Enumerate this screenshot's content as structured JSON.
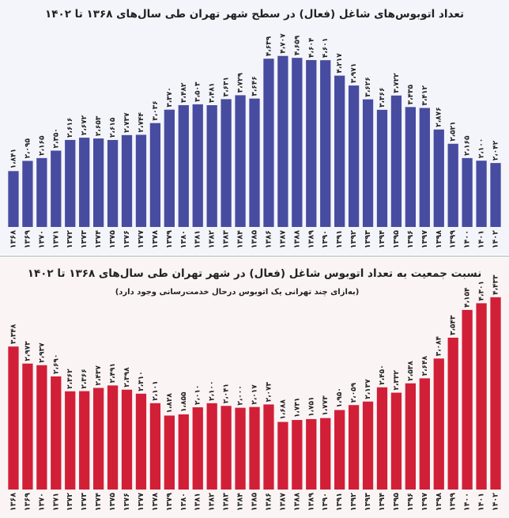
{
  "chart_data": [
    {
      "type": "bar",
      "title": "تعداد اتوبوس‌های شاغل (فعال) در سطح شهر تهران طی سال‌های ۱۳۶۸ تا ۱۴۰۲",
      "categories": [
        "۱۳۶۸",
        "۱۳۶۹",
        "۱۳۷۰",
        "۱۳۷۱",
        "۱۳۷۲",
        "۱۳۷۳",
        "۱۳۷۴",
        "۱۳۷۵",
        "۱۳۷۶",
        "۱۳۷۷",
        "۱۳۷۸",
        "۱۳۷۹",
        "۱۳۸۰",
        "۱۳۸۱",
        "۱۳۸۲",
        "۱۳۸۳",
        "۱۳۸۴",
        "۱۳۸۵",
        "۱۳۸۶",
        "۱۳۸۷",
        "۱۳۸۸",
        "۱۳۸۹",
        "۱۳۹۰",
        "۱۳۹۱",
        "۱۳۹۲",
        "۱۳۹۳",
        "۱۳۹۴",
        "۱۳۹۵",
        "۱۳۹۶",
        "۱۳۹۷",
        "۱۳۹۸",
        "۱۳۹۹",
        "۱۴۰۰",
        "۱۴۰۱",
        "۱۴۰۲"
      ],
      "values": [
        1841,
        2095,
        2165,
        2350,
        2616,
        2672,
        2653,
        2615,
        2737,
        2744,
        3036,
        3370,
        3482,
        3503,
        3481,
        3631,
        3729,
        3646,
        4639,
        4707,
        4659,
        4604,
        4601,
        4217,
        3971,
        3626,
        3366,
        3722,
        3435,
        3412,
        2876,
        2521,
        2165,
        2100,
        2042
      ],
      "value_labels": [
        "۱،۸۴۱",
        "۲،۰۹۵",
        "۲،۱۶۵",
        "۲،۳۵۰",
        "۲،۶۱۶",
        "۲،۶۷۲",
        "۲،۶۵۳",
        "۲،۶۱۵",
        "۲،۷۳۷",
        "۲،۷۴۴",
        "۳،۰۳۶",
        "۳،۳۷۰",
        "۳،۴۸۲",
        "۳،۵۰۳",
        "۳،۴۸۱",
        "۳،۶۳۱",
        "۳،۷۲۹",
        "۳،۶۴۶",
        "۴،۶۳۹",
        "۴،۷۰۷",
        "۴،۶۵۹",
        "۴،۶۰۴",
        "۴،۶۰۱",
        "۴،۲۱۷",
        "۳،۹۷۱",
        "۳،۶۲۶",
        "۳،۳۶۶",
        "۳،۷۲۲",
        "۳،۴۳۵",
        "۳،۴۱۲",
        "۲،۸۷۶",
        "۲،۵۲۱",
        "۲،۱۶۵",
        "۲،۱۰۰",
        "۲،۰۴۲"
      ],
      "color": "#474ca0",
      "ylim": [
        450,
        4800
      ]
    },
    {
      "type": "bar",
      "title": "نسبت جمعیت به تعداد اتوبوس شاغل (فعال) در شهر تهران طی سال‌های ۱۳۶۸ تا ۱۴۰۲",
      "subtitle": "(به‌ازای چند تهرانی یک اتوبوس درحال خدمت‌رسانی وجود دارد)",
      "categories": [
        "۱۳۶۸",
        "۱۳۶۹",
        "۱۳۷۰",
        "۱۳۷۱",
        "۱۳۷۲",
        "۱۳۷۳",
        "۱۳۷۴",
        "۱۳۷۵",
        "۱۳۷۶",
        "۱۳۷۷",
        "۱۳۷۸",
        "۱۳۷۹",
        "۱۳۸۰",
        "۱۳۸۱",
        "۱۳۸۲",
        "۱۳۸۳",
        "۱۳۸۴",
        "۱۳۸۵",
        "۱۳۸۶",
        "۱۳۸۷",
        "۱۳۸۸",
        "۱۳۸۹",
        "۱۳۹۰",
        "۱۳۹۱",
        "۱۳۹۲",
        "۱۳۹۳",
        "۱۳۹۴",
        "۱۳۹۵",
        "۱۳۹۶",
        "۱۳۹۷",
        "۱۳۹۸",
        "۱۳۹۹",
        "۱۴۰۰",
        "۱۴۰۱",
        "۱۴۰۲"
      ],
      "values": [
        3348,
        2973,
        2937,
        2690,
        2362,
        2366,
        2437,
        2491,
        2398,
        2310,
        2101,
        1828,
        1855,
        2010,
        2100,
        2041,
        2000,
        2017,
        2073,
        1688,
        1731,
        1751,
        1773,
        1950,
        2059,
        2137,
        2450,
        2332,
        2538,
        2648,
        3084,
        3543,
        4154,
        4301,
        4433
      ],
      "value_labels": [
        "۳،۳۴۸",
        "۲،۹۷۳",
        "۲،۹۳۷",
        "۲،۶۹۰",
        "۲،۳۶۲",
        "۲،۳۶۶",
        "۲،۴۳۷",
        "۲،۴۹۱",
        "۲،۳۹۸",
        "۲،۳۱۰",
        "۲،۱۰۱",
        "۱،۸۲۸",
        "۱،۸۵۵",
        "۲،۰۱۰",
        "۲،۱۰۰",
        "۲،۰۴۱",
        "۲،۰۰۰",
        "۲،۰۱۷",
        "۲،۰۷۳",
        "۱،۶۸۸",
        "۱،۷۳۱",
        "۱،۷۵۱",
        "۱،۷۷۳",
        "۱،۹۵۰",
        "۲،۰۵۹",
        "۲،۱۳۷",
        "۲،۴۵۰",
        "۲،۳۳۲",
        "۲،۵۳۸",
        "۲،۶۴۸",
        "۳،۰۸۴",
        "۳،۵۴۳",
        "۴،۱۵۴",
        "۴،۳۰۱",
        "۴،۴۳۳"
      ],
      "color": "#d11f38",
      "ylim": [
        200,
        4500
      ]
    }
  ]
}
